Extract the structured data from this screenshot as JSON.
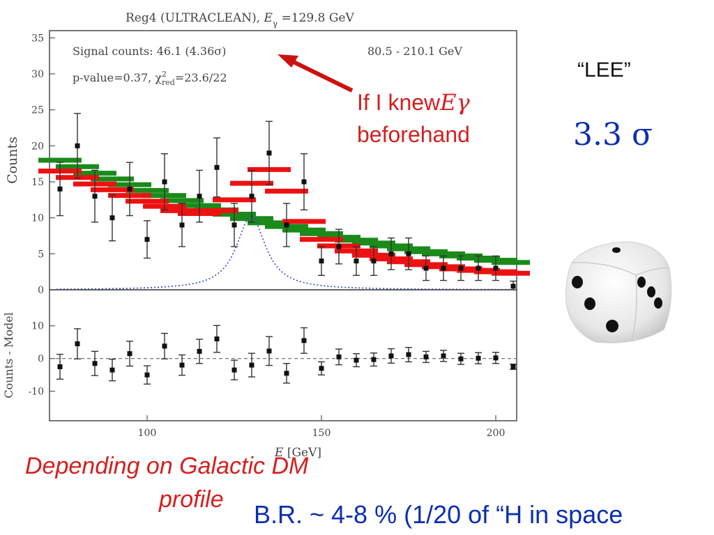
{
  "chart_data": [
    {
      "type": "scatter",
      "title": "Reg4 (ULTRACLEAN), Eγ =129.8 GeV",
      "title_parts": {
        "prefix": "Reg4 (ULTRACLEAN), ",
        "symbol": "E",
        "subscript": "γ",
        "suffix": " =129.8 GeV"
      },
      "ylabel": "Counts",
      "xlim": [
        72,
        206
      ],
      "ylim": [
        0,
        36
      ],
      "yticks": [
        0,
        5,
        10,
        15,
        20,
        25,
        30,
        35
      ],
      "annotations": {
        "signal": "Signal counts: 46.1 (4.36σ)",
        "pvalue": "p-value=0.37, χ²red=23.6/22",
        "pvalue_parts": {
          "prefix": "p-value=0.37, χ",
          "sup": "2",
          "sub": "red",
          "suffix": "=23.6/22"
        },
        "range": "80.5 - 210.1 GeV"
      },
      "data": {
        "x": [
          75,
          80,
          85,
          90,
          95,
          100,
          105,
          110,
          115,
          120,
          125,
          130,
          135,
          140,
          145,
          150,
          155,
          160,
          165,
          170,
          175,
          180,
          185,
          190,
          195,
          200,
          205
        ],
        "y": [
          14,
          20,
          13,
          10,
          14,
          7,
          15,
          9,
          13,
          17,
          9,
          13,
          19,
          9,
          15,
          4,
          6,
          4,
          4,
          5,
          5,
          3,
          3,
          3,
          3,
          3,
          0.5
        ],
        "err": [
          3.7,
          4.5,
          3.6,
          3.2,
          3.7,
          2.6,
          3.9,
          3.0,
          3.6,
          4.1,
          3.0,
          3.6,
          4.4,
          3.0,
          3.9,
          2.0,
          2.4,
          2.0,
          2.0,
          2.2,
          2.2,
          1.7,
          1.7,
          1.7,
          1.7,
          1.7,
          0.7
        ]
      },
      "background_model": [
        18,
        17.1,
        16.2,
        15.4,
        14.6,
        13.8,
        13.1,
        12.4,
        11.7,
        11.1,
        10.5,
        9.9,
        9.3,
        8.8,
        8.3,
        7.8,
        7.3,
        6.9,
        6.5,
        6.1,
        5.7,
        5.3,
        5.0,
        4.7,
        4.4,
        4.1,
        3.8
      ],
      "total_model": [
        16.5,
        15.6,
        14.7,
        13.9,
        13.1,
        12.3,
        11.6,
        11.0,
        10.6,
        11.0,
        12.5,
        14.8,
        16.7,
        13.7,
        9.5,
        7.0,
        6.1,
        5.4,
        4.8,
        4.3,
        3.9,
        3.5,
        3.2,
        2.9,
        2.7,
        2.5,
        2.3
      ],
      "signal_peak": {
        "center": 129.8,
        "height": 10.3,
        "width": 5
      }
    },
    {
      "type": "scatter",
      "ylabel": "Counts - Model",
      "xlabel": "E [GeV]",
      "xlabel_parts": {
        "symbol": "E",
        "unit": " [GeV]"
      },
      "xlim": [
        72,
        206
      ],
      "ylim": [
        -19,
        21
      ],
      "xticks": [
        100,
        150,
        200
      ],
      "yticks": [
        10,
        0,
        -10
      ],
      "x": [
        75,
        80,
        85,
        90,
        95,
        100,
        105,
        110,
        115,
        120,
        125,
        130,
        135,
        140,
        145,
        150,
        155,
        160,
        165,
        170,
        175,
        180,
        185,
        190,
        195,
        200,
        205
      ],
      "residuals": [
        -2.5,
        4.5,
        -1.5,
        -3.5,
        1.5,
        -5.0,
        3.8,
        -2.0,
        2.2,
        6.0,
        -3.5,
        -2.0,
        2.3,
        -4.5,
        5.5,
        -3.0,
        0.5,
        -0.5,
        -0.3,
        0.8,
        1.2,
        0.5,
        0.8,
        -0.1,
        0.1,
        0.2,
        -2.5
      ],
      "err": [
        3.8,
        4.6,
        3.7,
        3.3,
        3.8,
        2.8,
        3.9,
        3.1,
        3.7,
        4.1,
        3.0,
        3.6,
        4.4,
        3.0,
        3.9,
        2.0,
        2.4,
        2.0,
        2.0,
        2.2,
        2.2,
        1.7,
        1.7,
        1.7,
        1.7,
        1.7,
        0.8
      ]
    }
  ],
  "overlay": {
    "knew_line1": "If I knew",
    "egamma_symbol": "Eγ",
    "knew_line2": "beforehand",
    "lee": "“LEE”",
    "sigma": "3.3 σ",
    "dm_line1": "Depending on Galactic DM",
    "dm_line2": "profile",
    "br": "B.R. ~   4-8 %  (1/20 of “H in space"
  },
  "colors": {
    "background_model": "#1a8a1a",
    "total_model": "#ee1111",
    "signal_curve": "#3344cc",
    "arrow": "#cc1111",
    "annotation_red": "#d42020",
    "annotation_blue": "#0b2fb0"
  }
}
